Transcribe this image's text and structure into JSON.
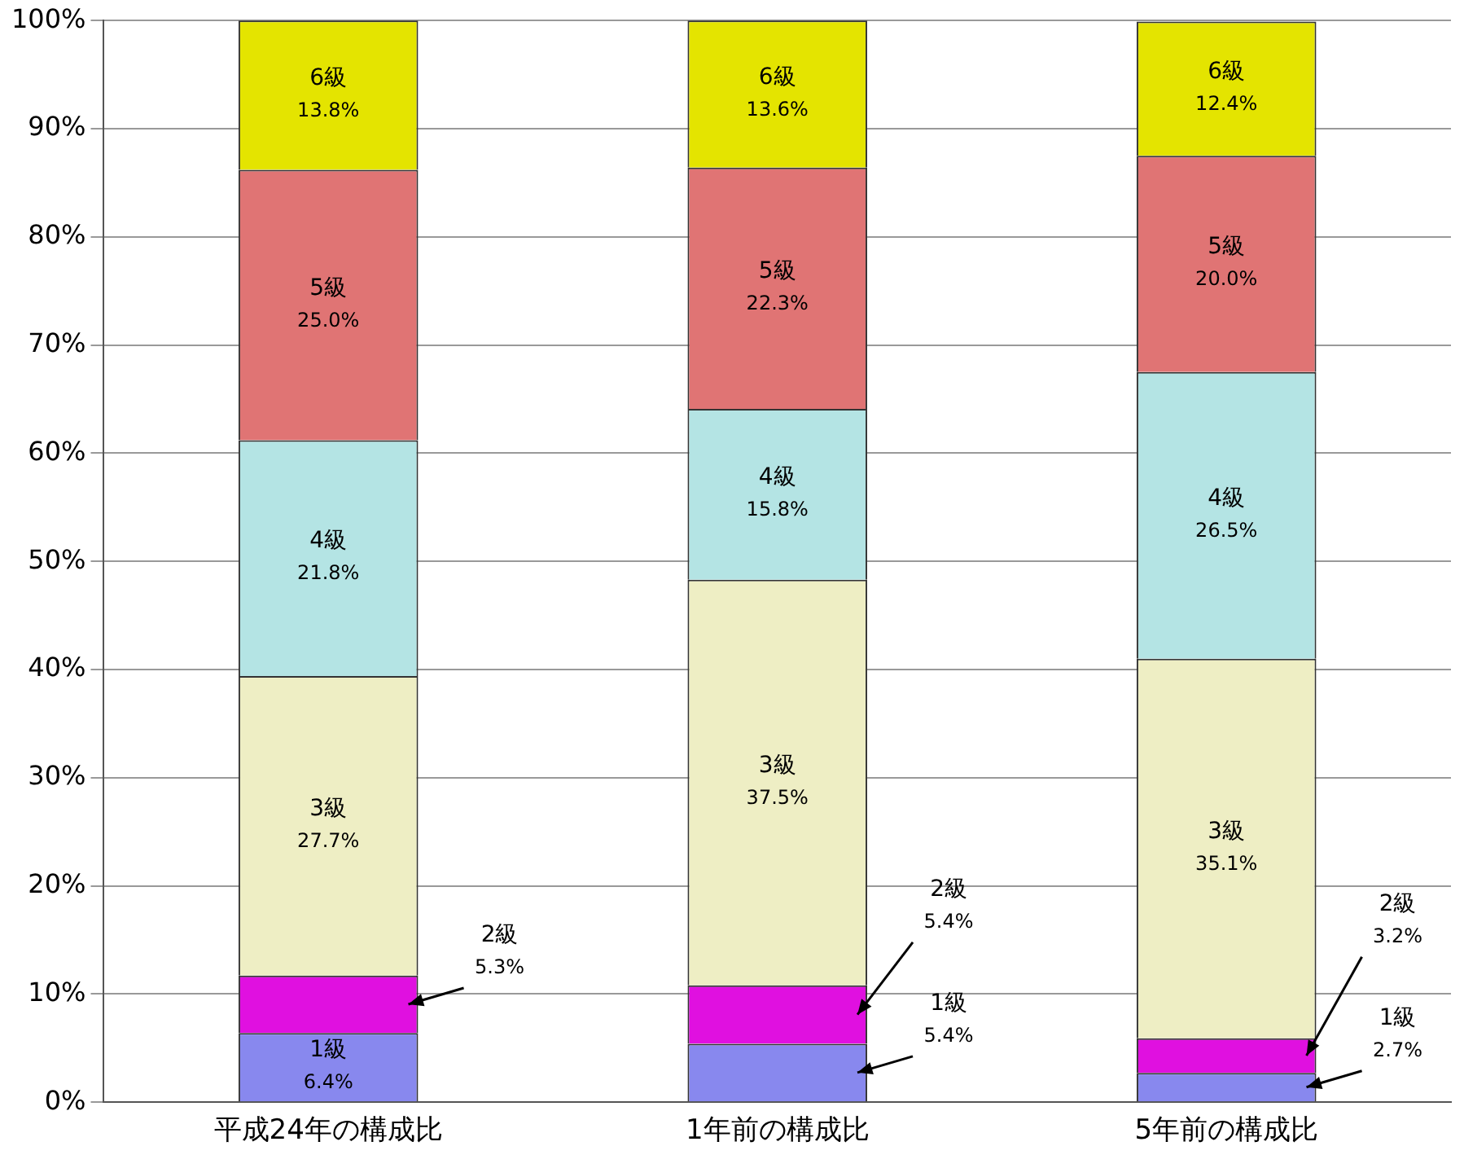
{
  "chart_data": {
    "type": "bar",
    "stacked": true,
    "categories": [
      "平成24年の構成比",
      "1年前の構成比",
      "5年前の構成比"
    ],
    "ylim": [
      0,
      100
    ],
    "yticks": [
      {
        "value": 0,
        "label": "0%"
      },
      {
        "value": 10,
        "label": "10%"
      },
      {
        "value": 20,
        "label": "20%"
      },
      {
        "value": 30,
        "label": "30%"
      },
      {
        "value": 40,
        "label": "40%"
      },
      {
        "value": 50,
        "label": "50%"
      },
      {
        "value": 60,
        "label": "60%"
      },
      {
        "value": 70,
        "label": "70%"
      },
      {
        "value": 80,
        "label": "80%"
      },
      {
        "value": 90,
        "label": "90%"
      },
      {
        "value": 100,
        "label": "100%"
      }
    ],
    "grid": "y",
    "legend": false,
    "series": [
      {
        "name": "1級",
        "color": "#8888ee",
        "values": [
          6.4,
          5.4,
          2.7
        ],
        "value_labels": [
          "6.4%",
          "5.4%",
          "2.7%"
        ]
      },
      {
        "name": "2級",
        "color": "#e010e0",
        "values": [
          5.3,
          5.4,
          3.2
        ],
        "value_labels": [
          "5.3%",
          "5.4%",
          "3.2%"
        ]
      },
      {
        "name": "3級",
        "color": "#eeeec4",
        "values": [
          27.7,
          37.5,
          35.1
        ],
        "value_labels": [
          "27.7%",
          "37.5%",
          "35.1%"
        ]
      },
      {
        "name": "4級",
        "color": "#b4e4e4",
        "values": [
          21.8,
          15.8,
          26.5
        ],
        "value_labels": [
          "21.8%",
          "15.8%",
          "26.5%"
        ]
      },
      {
        "name": "5級",
        "color": "#e07474",
        "values": [
          25.0,
          22.3,
          20.0
        ],
        "value_labels": [
          "25.0%",
          "22.3%",
          "20.0%"
        ]
      },
      {
        "name": "6級",
        "color": "#e4e400",
        "values": [
          13.8,
          13.6,
          12.4
        ],
        "value_labels": [
          "13.8%",
          "13.6%",
          "12.4%"
        ]
      }
    ]
  }
}
